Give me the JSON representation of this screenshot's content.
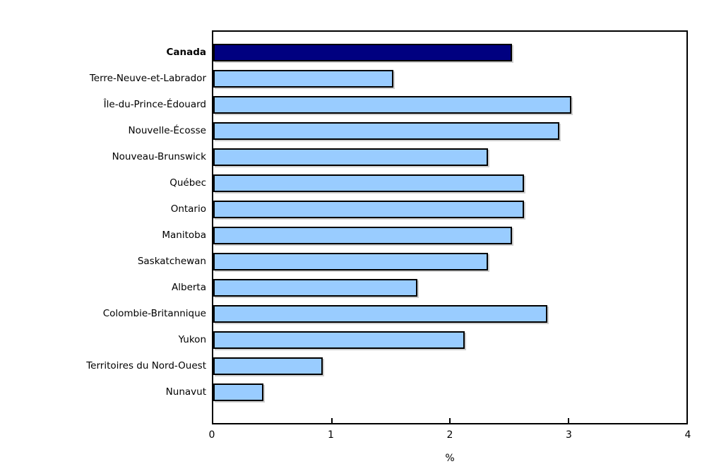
{
  "chart_data": {
    "type": "bar",
    "orientation": "horizontal",
    "title": "",
    "xlabel": "%",
    "ylabel": "",
    "xlim": [
      0,
      4
    ],
    "xticks": [
      "0",
      "1",
      "2",
      "3",
      "4"
    ],
    "grid": false,
    "legend": "none",
    "categories": [
      "Canada",
      "Terre-Neuve-et-Labrador",
      "Île-du-Prince-Édouard",
      "Nouvelle-Écosse",
      "Nouveau-Brunswick",
      "Québec",
      "Ontario",
      "Manitoba",
      "Saskatchewan",
      "Alberta",
      "Colombie-Britannique",
      "Yukon",
      "Territoires du Nord-Ouest",
      "Nunavut"
    ],
    "values": [
      2.5,
      1.5,
      3.0,
      2.9,
      2.3,
      2.6,
      2.6,
      2.5,
      2.3,
      1.7,
      2.8,
      2.1,
      0.9,
      0.4
    ],
    "highlight_index": 0,
    "colors": {
      "bar_default": "#99CCFF",
      "bar_highlight": "#000080",
      "bar_border": "#000000",
      "frame": "#000000",
      "background": "#ffffff"
    }
  }
}
